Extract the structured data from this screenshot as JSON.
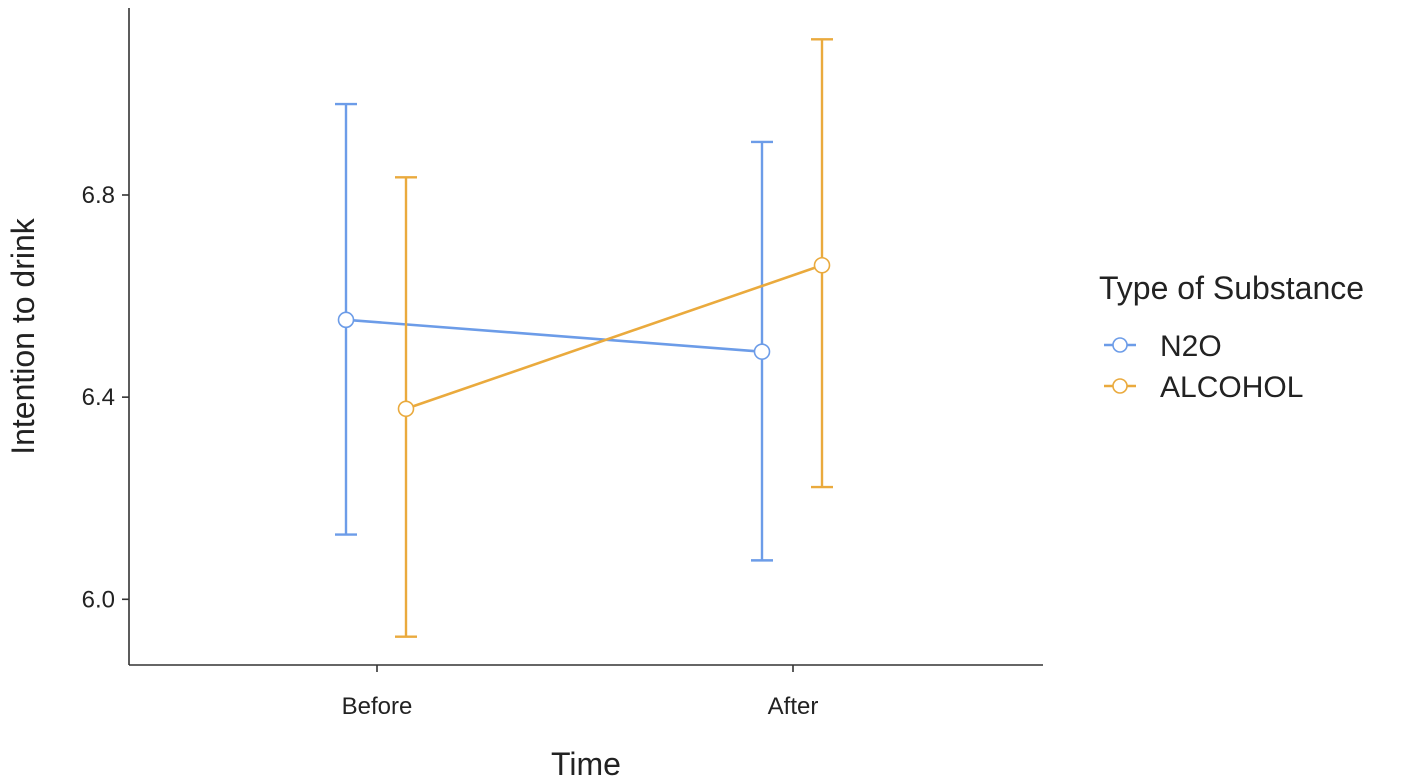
{
  "chart_data": {
    "type": "line",
    "x": [
      "Before",
      "After"
    ],
    "xlabel": "Time",
    "ylabel": "Intention to drink",
    "ylim": [
      5.87,
      7.17
    ],
    "yticks": [
      6.0,
      6.4,
      6.8
    ],
    "ytick_labels": [
      "6.0",
      "6.4",
      "6.8"
    ],
    "grid": false,
    "legend": {
      "title": "Type of Substance",
      "placement": "right"
    },
    "series": [
      {
        "name": "N2O",
        "color": "#6c9ce8",
        "values": [
          6.553,
          6.49
        ],
        "error_low": [
          6.128,
          6.077
        ],
        "error_high": [
          6.98,
          6.905
        ]
      },
      {
        "name": "ALCOHOL",
        "color": "#eaaa3d",
        "values": [
          6.377,
          6.661
        ],
        "error_low": [
          5.926,
          6.222
        ],
        "error_high": [
          6.835,
          7.108
        ]
      }
    ]
  }
}
